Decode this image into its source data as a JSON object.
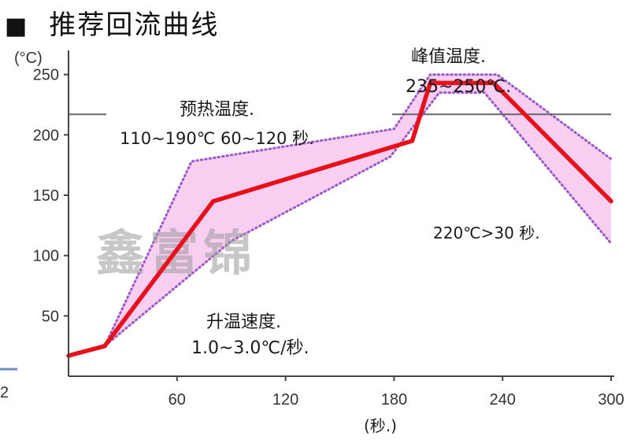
{
  "heading": {
    "bullet": "■",
    "text": "推荐回流曲线"
  },
  "watermark": "鑫富锦",
  "side_label": "2",
  "chart_data": {
    "type": "line",
    "title": "推荐回流曲线",
    "xlabel": "(秒.)",
    "ylabel": "(°C)",
    "xlim": [
      0,
      300
    ],
    "ylim": [
      0,
      270
    ],
    "xticks": [
      60,
      120,
      180,
      240,
      300
    ],
    "yticks": [
      50,
      100,
      150,
      200,
      250
    ],
    "reference_line_y": 217,
    "colors": {
      "profile": "#e8101a",
      "window_fill": "#f7c6ee",
      "window_edge": "#9b59c8",
      "reference": "#666666"
    },
    "series": [
      {
        "role": "profile",
        "x": [
          0,
          20,
          80,
          190,
          200,
          235,
          300
        ],
        "y": [
          17,
          25,
          145,
          195,
          243,
          243,
          145
        ]
      },
      {
        "role": "upper_limit",
        "x": [
          0,
          20,
          68,
          180,
          200,
          237,
          300
        ],
        "y": [
          17,
          25,
          178,
          205,
          250,
          250,
          180
        ]
      },
      {
        "role": "lower_limit",
        "x": [
          0,
          20,
          90,
          178,
          205,
          230,
          300
        ],
        "y": [
          17,
          25,
          112,
          182,
          235,
          235,
          110
        ]
      }
    ],
    "annotations": [
      {
        "id": "preheat",
        "lines": [
          "预热温度.",
          "110~190℃  60~120 秒."
        ]
      },
      {
        "id": "peak",
        "lines": [
          "峰值温度.",
          "235~250℃."
        ]
      },
      {
        "id": "above",
        "lines": [
          "220℃>30 秒."
        ]
      },
      {
        "id": "ramp",
        "lines": [
          "升温速度.",
          "1.0~3.0℃/秒."
        ]
      }
    ]
  }
}
